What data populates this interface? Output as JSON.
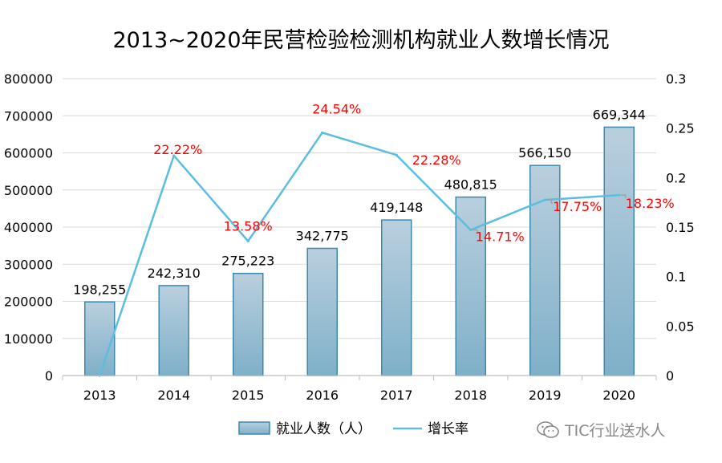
{
  "title": "2013~2020年民营检验检测机构就业人数增长情况",
  "legend": {
    "bar_label": "就业人数（人）",
    "line_label": "增长率"
  },
  "watermark": "TIC行业送水人",
  "colors": {
    "bar_fill_top": "#b9cfde",
    "bar_fill_bottom": "#7fb0c9",
    "bar_stroke": "#3c89ad",
    "line": "#5bbde0",
    "line_label": "#ff0000",
    "grid": "#d9d9d9",
    "leader": "#a0a0a0"
  },
  "chart_data": {
    "type": "bar",
    "categories": [
      "2013",
      "2014",
      "2015",
      "2016",
      "2017",
      "2018",
      "2019",
      "2020"
    ],
    "series": [
      {
        "name": "就业人数（人）",
        "type": "bar",
        "axis": "left",
        "values": [
          198255,
          242310,
          275223,
          342775,
          419148,
          480815,
          566150,
          669344
        ],
        "labels": [
          "198,255",
          "242,310",
          "275,223",
          "342,775",
          "419,148",
          "480,815",
          "566,150",
          "669,344"
        ]
      },
      {
        "name": "增长率",
        "type": "line",
        "axis": "right",
        "values": [
          0,
          0.2222,
          0.1358,
          0.2454,
          0.2228,
          0.1471,
          0.1775,
          0.1823
        ],
        "labels": [
          "",
          "22.22%",
          "13.58%",
          "24.54%",
          "22.28%",
          "14.71%",
          "17.75%",
          "18.23%"
        ]
      }
    ],
    "y_left": {
      "min": 0,
      "max": 800000,
      "ticks": [
        "0",
        "100000",
        "200000",
        "300000",
        "400000",
        "500000",
        "600000",
        "700000",
        "800000"
      ]
    },
    "y_right": {
      "min": 0,
      "max": 0.3,
      "ticks": [
        "0",
        "0.05",
        "0.1",
        "0.15",
        "0.2",
        "0.25",
        "0.3"
      ]
    },
    "grid": true,
    "legend_position": "bottom"
  }
}
